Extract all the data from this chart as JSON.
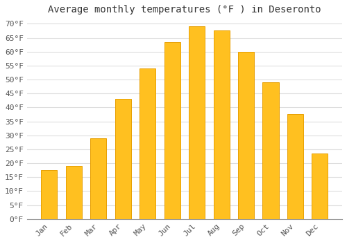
{
  "title": "Average monthly temperatures (°F ) in Deseronto",
  "months": [
    "Jan",
    "Feb",
    "Mar",
    "Apr",
    "May",
    "Jun",
    "Jul",
    "Aug",
    "Sep",
    "Oct",
    "Nov",
    "Dec"
  ],
  "values": [
    17.5,
    19,
    29,
    43,
    54,
    63.5,
    69,
    67.5,
    60,
    49,
    37.5,
    23.5
  ],
  "bar_color": "#FFC020",
  "bar_edge_color": "#E8A000",
  "ylim": [
    0,
    72
  ],
  "yticks": [
    0,
    5,
    10,
    15,
    20,
    25,
    30,
    35,
    40,
    45,
    50,
    55,
    60,
    65,
    70
  ],
  "ytick_labels": [
    "0°F",
    "5°F",
    "10°F",
    "15°F",
    "20°F",
    "25°F",
    "30°F",
    "35°F",
    "40°F",
    "45°F",
    "50°F",
    "55°F",
    "60°F",
    "65°F",
    "70°F"
  ],
  "title_fontsize": 10,
  "tick_fontsize": 8,
  "background_color": "#FFFFFF",
  "grid_color": "#DDDDDD",
  "bar_width": 0.65
}
